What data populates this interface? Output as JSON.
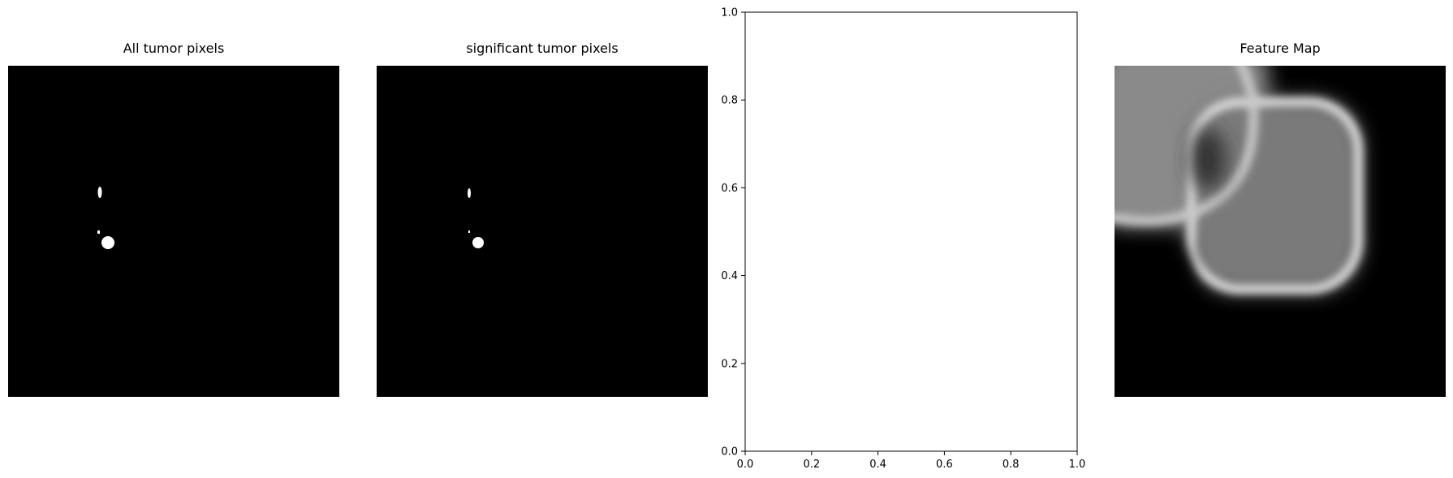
{
  "figure": {
    "panels": [
      {
        "title": "All tumor pixels",
        "image": "binary-mask-all"
      },
      {
        "title": "significant tumor pixels",
        "image": "binary-mask-significant"
      },
      {
        "title": "",
        "image": "empty-axes"
      },
      {
        "title": "Feature Map",
        "image": "grayscale-feature-map"
      }
    ]
  },
  "chart_data": [
    {
      "type": "other",
      "title": "All tumor pixels",
      "description_colors": {
        "background": "#000000",
        "foreground": "#ffffff"
      }
    },
    {
      "type": "other",
      "title": "significant tumor pixels",
      "description_colors": {
        "background": "#000000",
        "foreground": "#ffffff"
      }
    },
    {
      "type": "scatter",
      "title": "",
      "xlabel": "",
      "ylabel": "",
      "xlim": [
        0.0,
        1.0
      ],
      "ylim": [
        0.0,
        1.0
      ],
      "x_ticks": [
        "0.0",
        "0.2",
        "0.4",
        "0.6",
        "0.8",
        "1.0"
      ],
      "y_ticks": [
        "0.0",
        "0.2",
        "0.4",
        "0.6",
        "0.8",
        "1.0"
      ],
      "series": []
    },
    {
      "type": "heatmap",
      "title": "Feature Map",
      "colormap": "gray"
    }
  ]
}
